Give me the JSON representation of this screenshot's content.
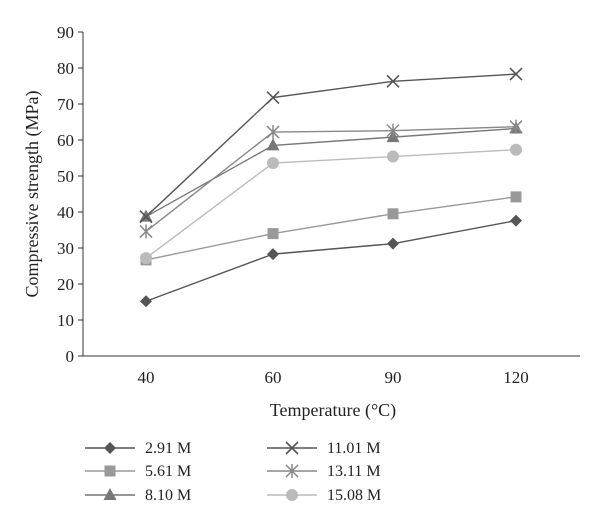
{
  "chart_data": {
    "type": "line",
    "title": "",
    "xlabel": "Temperature (°C)",
    "ylabel": "Compressive strength (MPa)",
    "categories": [
      "40",
      "60",
      "90",
      "120"
    ],
    "ylim": [
      0,
      90
    ],
    "yticks": [
      "0",
      "10",
      "20",
      "30",
      "40",
      "50",
      "60",
      "70",
      "80",
      "90"
    ],
    "grid": false,
    "legend_position": "bottom",
    "series": [
      {
        "name": "2.91 M",
        "values": [
          15.2,
          28.3,
          31.2,
          37.6
        ],
        "marker": "diamond",
        "color": "#555555"
      },
      {
        "name": "5.61 M",
        "values": [
          26.7,
          34.0,
          39.5,
          44.2
        ],
        "marker": "square",
        "color": "#999999"
      },
      {
        "name": "8.10 M",
        "values": [
          38.7,
          58.5,
          60.8,
          63.2
        ],
        "marker": "triangle",
        "color": "#777777"
      },
      {
        "name": "11.01 M",
        "values": [
          38.7,
          71.8,
          76.3,
          78.3
        ],
        "marker": "x",
        "color": "#555555"
      },
      {
        "name": "13.11 M",
        "values": [
          34.6,
          62.2,
          62.6,
          63.7
        ],
        "marker": "star",
        "color": "#888888"
      },
      {
        "name": "15.08 M",
        "values": [
          27.2,
          53.6,
          55.4,
          57.3
        ],
        "marker": "circle",
        "color": "#bbbbbb"
      }
    ]
  }
}
